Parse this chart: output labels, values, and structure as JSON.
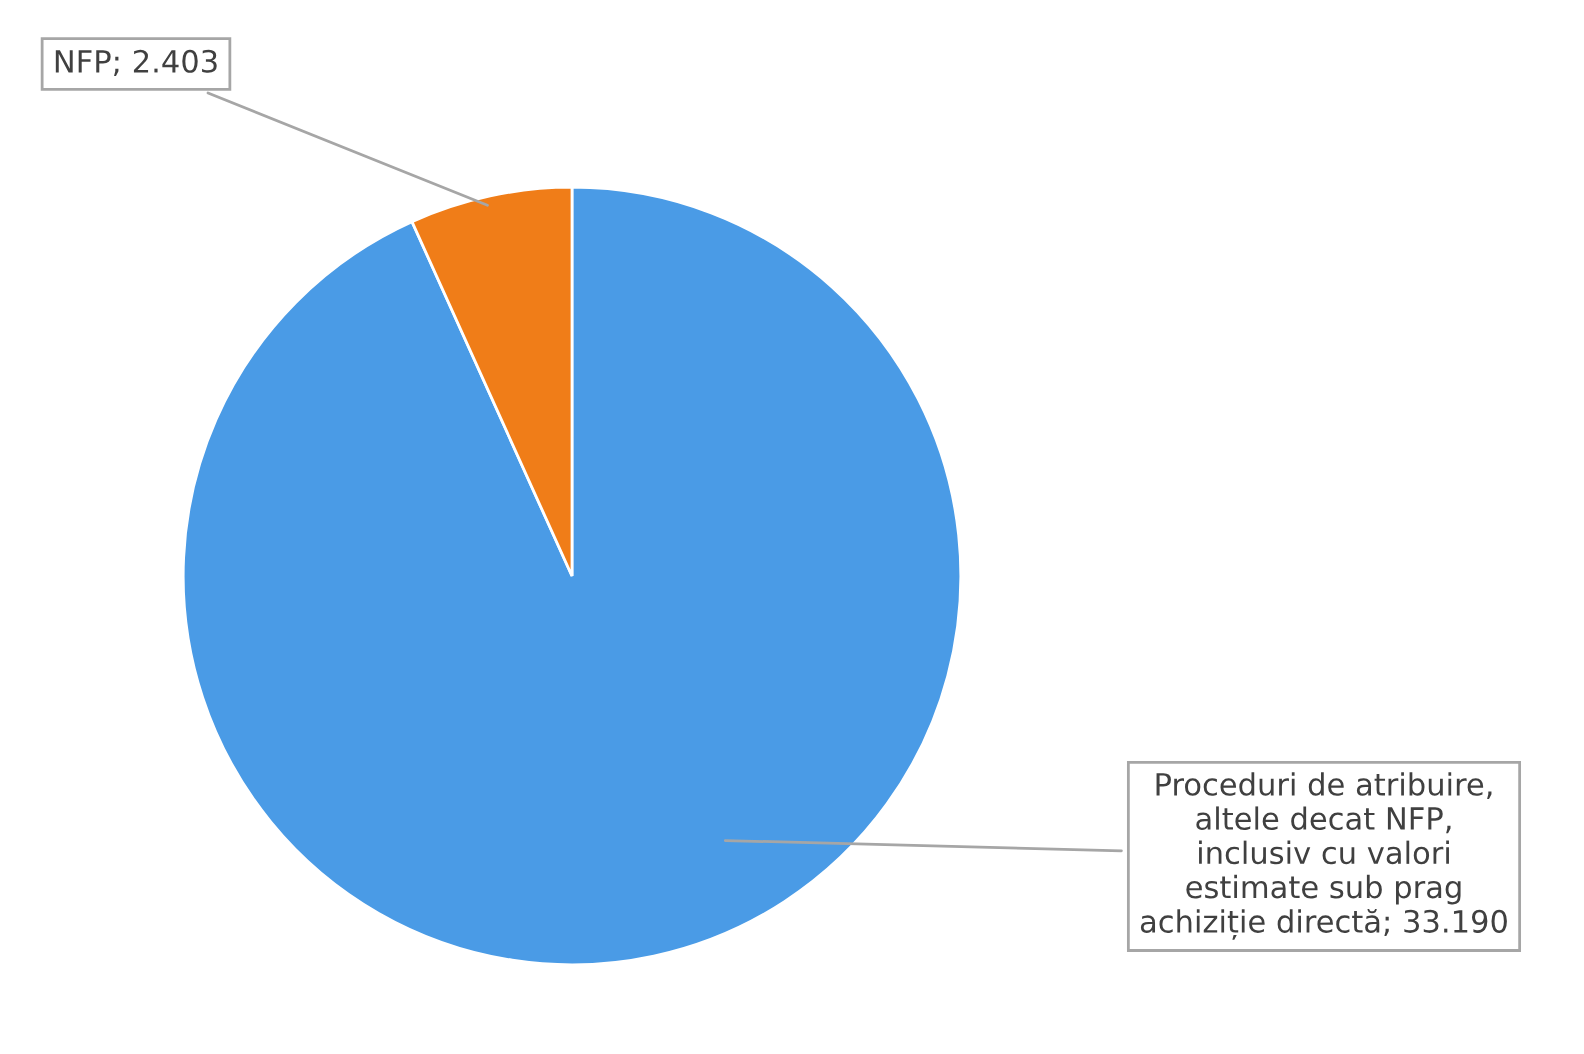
{
  "chart_data": {
    "type": "pie",
    "categories": [
      "Proceduri de atribuire,\naltele decat NFP,\ninclusiv cu valori\nestimate sub prag\nachiziție directă",
      "NFP"
    ],
    "values": [
      33190,
      2403
    ],
    "value_labels": [
      "33.190",
      "2.403"
    ],
    "colors": [
      "#4a9be6",
      "#f07d18"
    ],
    "legend": false
  }
}
